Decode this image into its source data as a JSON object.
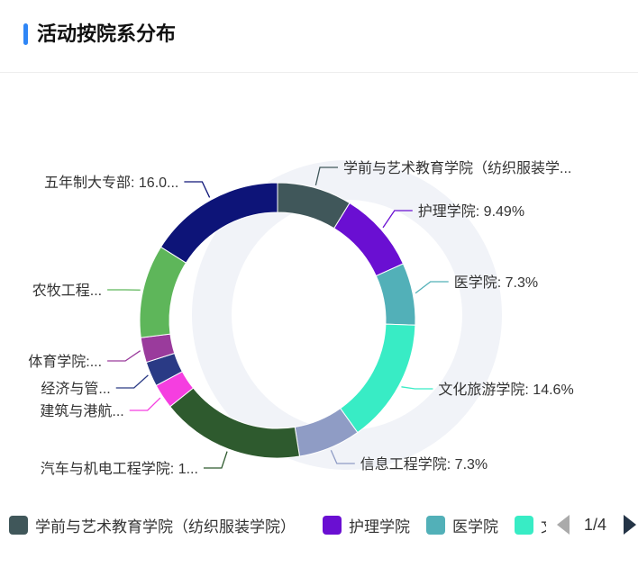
{
  "header": {
    "title": "活动按院系分布"
  },
  "chart_data": {
    "type": "pie",
    "variant": "donut",
    "series": [
      {
        "name": "学前与艺术教育学院（纺织服装学院）",
        "value": 8.76,
        "label": "学前与艺术教育学院（纺织服装学...",
        "color": "#40575a"
      },
      {
        "name": "护理学院",
        "value": 9.49,
        "label": "护理学院: 9.49%",
        "color": "#6a0fd2"
      },
      {
        "name": "医学院",
        "value": 7.3,
        "label": "医学院: 7.3%",
        "color": "#52b0b8"
      },
      {
        "name": "文化旅游学院",
        "value": 14.6,
        "label": "文化旅游学院: 14.6%",
        "color": "#38ecc5"
      },
      {
        "name": "信息工程学院",
        "value": 7.3,
        "label": "信息工程学院: 7.3%",
        "color": "#8f9cc5"
      },
      {
        "name": "汽车与机电工程学院",
        "value": 16.8,
        "label": "汽车与机电工程学院: 1...",
        "color": "#2e5a2e"
      },
      {
        "name": "建筑与港航",
        "value": 2.92,
        "label": "建筑与港航...",
        "color": "#f53ee0"
      },
      {
        "name": "经济与管",
        "value": 2.92,
        "label": "经济与管...",
        "color": "#2a3a85"
      },
      {
        "name": "体育学院",
        "value": 2.92,
        "label": "体育学院:...",
        "color": "#9a3b9c"
      },
      {
        "name": "农牧工程",
        "value": 10.95,
        "label": "农牧工程...",
        "color": "#5eb65a"
      },
      {
        "name": "五年制大专部",
        "value": 16.06,
        "label": "五年制大专部: 16.0...",
        "color": "#0d1478"
      }
    ]
  },
  "legend": {
    "items": [
      {
        "label": "学前与艺术教育学院（纺织服装学院）",
        "color": "#40575a"
      },
      {
        "label": "护理学院",
        "color": "#6a0fd2"
      },
      {
        "label": "医学院",
        "color": "#52b0b8"
      },
      {
        "label": "文",
        "color": "#38ecc5"
      }
    ],
    "page": "1/4"
  }
}
